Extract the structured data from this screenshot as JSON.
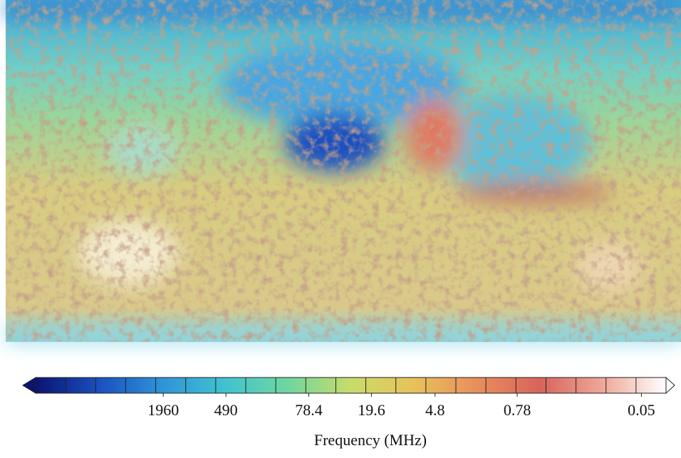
{
  "chart_data": {
    "type": "map",
    "colorbar": {
      "label": "Frequency (MHz)",
      "log_scale": true,
      "xlim": [
        33000,
        0.029
      ],
      "xticks": [
        1960,
        490,
        78.4,
        19.6,
        4.8,
        0.78,
        0.05
      ],
      "colors": [
        "#0b1470",
        "#1a4fbf",
        "#2f93d8",
        "#3fc3d0",
        "#6fd6a0",
        "#c8dc6a",
        "#e8c25a",
        "#e88e5c",
        "#d8645c",
        "#eea898",
        "#ffffff"
      ]
    }
  }
}
